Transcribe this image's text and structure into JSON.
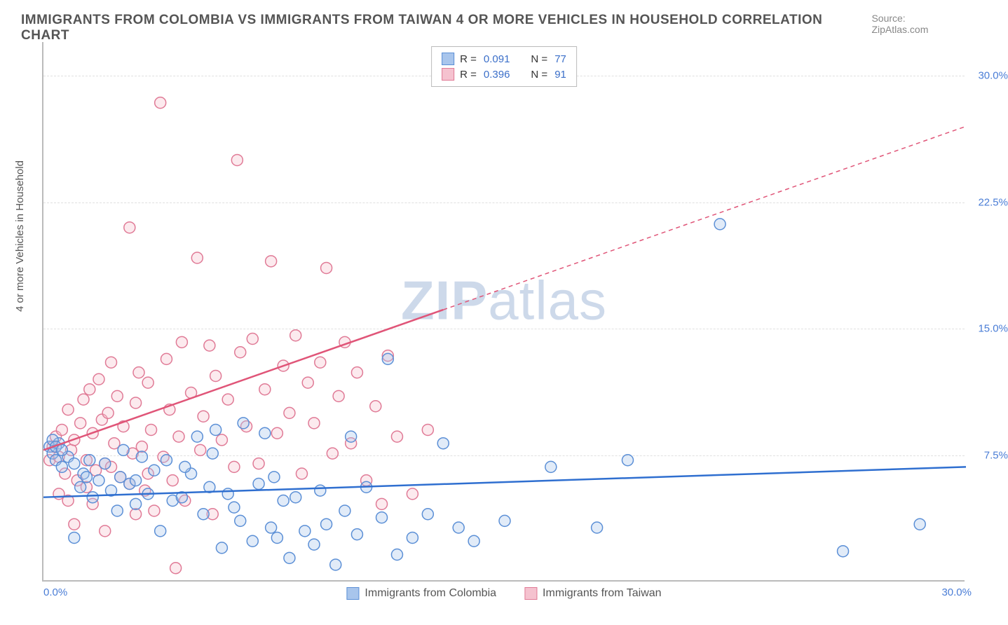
{
  "title": "IMMIGRANTS FROM COLOMBIA VS IMMIGRANTS FROM TAIWAN 4 OR MORE VEHICLES IN HOUSEHOLD CORRELATION CHART",
  "source_label": "Source: ZipAtlas.com",
  "watermark_bold": "ZIP",
  "watermark_rest": "atlas",
  "chart": {
    "type": "scatter",
    "xlim": [
      0,
      30
    ],
    "ylim": [
      0,
      32
    ],
    "x_unit": "%",
    "y_unit": "%",
    "y_axis_label": "4 or more Vehicles in Household",
    "x_ticks": [
      {
        "v": 0,
        "label": "0.0%"
      },
      {
        "v": 30,
        "label": "30.0%"
      }
    ],
    "y_ticks": [
      {
        "v": 7.5,
        "label": "7.5%"
      },
      {
        "v": 15.0,
        "label": "15.0%"
      },
      {
        "v": 22.5,
        "label": "22.5%"
      },
      {
        "v": 30.0,
        "label": "30.0%"
      }
    ],
    "grid_y": [
      7.5,
      15.0,
      22.5,
      30.0
    ],
    "grid_color": "#e0e0e0",
    "background_color": "#ffffff",
    "marker_radius": 8,
    "marker_stroke_width": 1.5,
    "marker_fill_opacity": 0.35,
    "trend_line_width": 2.5,
    "trend_dash": "6,5",
    "series": [
      {
        "id": "colombia",
        "label": "Immigrants from Colombia",
        "color_fill": "#a8c5ec",
        "color_stroke": "#5b8fd6",
        "trend_color": "#2f6fd0",
        "R": "0.091",
        "N": "77",
        "trend_from": [
          0,
          5.0
        ],
        "trend_to": [
          30,
          6.8
        ],
        "trend_solid_until_x": 30,
        "points": [
          [
            0.2,
            8.0
          ],
          [
            0.3,
            7.6
          ],
          [
            0.5,
            8.2
          ],
          [
            0.4,
            7.2
          ],
          [
            0.6,
            6.8
          ],
          [
            0.8,
            7.4
          ],
          [
            1.0,
            2.6
          ],
          [
            1.2,
            5.6
          ],
          [
            1.3,
            6.4
          ],
          [
            1.5,
            7.2
          ],
          [
            1.6,
            5.0
          ],
          [
            1.8,
            6.0
          ],
          [
            2.0,
            7.0
          ],
          [
            2.2,
            5.4
          ],
          [
            2.4,
            4.2
          ],
          [
            2.5,
            6.2
          ],
          [
            2.8,
            5.8
          ],
          [
            3.0,
            4.6
          ],
          [
            3.2,
            7.4
          ],
          [
            3.4,
            5.2
          ],
          [
            3.6,
            6.6
          ],
          [
            3.8,
            3.0
          ],
          [
            4.0,
            7.2
          ],
          [
            4.2,
            4.8
          ],
          [
            4.5,
            5.0
          ],
          [
            4.8,
            6.4
          ],
          [
            5.0,
            8.6
          ],
          [
            5.2,
            4.0
          ],
          [
            5.4,
            5.6
          ],
          [
            5.6,
            9.0
          ],
          [
            5.8,
            2.0
          ],
          [
            6.0,
            5.2
          ],
          [
            6.2,
            4.4
          ],
          [
            6.4,
            3.6
          ],
          [
            6.5,
            9.4
          ],
          [
            6.8,
            2.4
          ],
          [
            7.0,
            5.8
          ],
          [
            7.2,
            8.8
          ],
          [
            7.4,
            3.2
          ],
          [
            7.6,
            2.6
          ],
          [
            7.8,
            4.8
          ],
          [
            8.0,
            1.4
          ],
          [
            8.2,
            5.0
          ],
          [
            8.5,
            3.0
          ],
          [
            8.8,
            2.2
          ],
          [
            9.0,
            5.4
          ],
          [
            9.2,
            3.4
          ],
          [
            9.5,
            1.0
          ],
          [
            9.8,
            4.2
          ],
          [
            10.0,
            8.6
          ],
          [
            10.2,
            2.8
          ],
          [
            10.5,
            5.6
          ],
          [
            11.0,
            3.8
          ],
          [
            11.2,
            13.2
          ],
          [
            11.5,
            1.6
          ],
          [
            12.0,
            2.6
          ],
          [
            12.5,
            4.0
          ],
          [
            13.0,
            8.2
          ],
          [
            13.5,
            3.2
          ],
          [
            14.0,
            2.4
          ],
          [
            15.0,
            3.6
          ],
          [
            16.5,
            6.8
          ],
          [
            18.0,
            3.2
          ],
          [
            19.0,
            7.2
          ],
          [
            22.0,
            21.2
          ],
          [
            26.0,
            1.8
          ],
          [
            28.5,
            3.4
          ],
          [
            0.3,
            8.4
          ],
          [
            0.4,
            8.0
          ],
          [
            0.6,
            7.8
          ],
          [
            1.0,
            7.0
          ],
          [
            1.4,
            6.2
          ],
          [
            2.6,
            7.8
          ],
          [
            3.0,
            6.0
          ],
          [
            4.6,
            6.8
          ],
          [
            5.5,
            7.6
          ],
          [
            7.5,
            6.2
          ]
        ]
      },
      {
        "id": "taiwan",
        "label": "Immigrants from Taiwan",
        "color_fill": "#f5c2cf",
        "color_stroke": "#e07a96",
        "trend_color": "#e05578",
        "R": "0.396",
        "N": "91",
        "trend_from": [
          0,
          7.8
        ],
        "trend_to": [
          30,
          27.0
        ],
        "trend_solid_until_x": 13,
        "points": [
          [
            0.2,
            7.2
          ],
          [
            0.3,
            8.0
          ],
          [
            0.4,
            8.6
          ],
          [
            0.5,
            7.4
          ],
          [
            0.6,
            9.0
          ],
          [
            0.7,
            6.4
          ],
          [
            0.8,
            10.2
          ],
          [
            0.9,
            7.8
          ],
          [
            1.0,
            8.4
          ],
          [
            1.1,
            6.0
          ],
          [
            1.2,
            9.4
          ],
          [
            1.3,
            10.8
          ],
          [
            1.4,
            7.2
          ],
          [
            1.5,
            11.4
          ],
          [
            1.6,
            8.8
          ],
          [
            1.7,
            6.6
          ],
          [
            1.8,
            12.0
          ],
          [
            1.9,
            9.6
          ],
          [
            2.0,
            7.0
          ],
          [
            2.1,
            10.0
          ],
          [
            2.2,
            13.0
          ],
          [
            2.3,
            8.2
          ],
          [
            2.4,
            11.0
          ],
          [
            2.5,
            6.2
          ],
          [
            2.6,
            9.2
          ],
          [
            2.8,
            21.0
          ],
          [
            2.9,
            7.6
          ],
          [
            3.0,
            10.6
          ],
          [
            3.1,
            12.4
          ],
          [
            3.2,
            8.0
          ],
          [
            3.3,
            5.4
          ],
          [
            3.4,
            11.8
          ],
          [
            3.5,
            9.0
          ],
          [
            3.6,
            4.2
          ],
          [
            3.8,
            28.4
          ],
          [
            3.9,
            7.4
          ],
          [
            4.0,
            13.2
          ],
          [
            4.1,
            10.2
          ],
          [
            4.2,
            6.0
          ],
          [
            4.4,
            8.6
          ],
          [
            4.5,
            14.2
          ],
          [
            4.6,
            4.8
          ],
          [
            4.8,
            11.2
          ],
          [
            5.0,
            19.2
          ],
          [
            5.1,
            7.8
          ],
          [
            5.2,
            9.8
          ],
          [
            5.4,
            14.0
          ],
          [
            5.5,
            4.0
          ],
          [
            5.6,
            12.2
          ],
          [
            5.8,
            8.4
          ],
          [
            6.0,
            10.8
          ],
          [
            6.2,
            6.8
          ],
          [
            6.3,
            25.0
          ],
          [
            6.4,
            13.6
          ],
          [
            6.6,
            9.2
          ],
          [
            6.8,
            14.4
          ],
          [
            7.0,
            7.0
          ],
          [
            7.2,
            11.4
          ],
          [
            7.4,
            19.0
          ],
          [
            7.6,
            8.8
          ],
          [
            7.8,
            12.8
          ],
          [
            8.0,
            10.0
          ],
          [
            8.2,
            14.6
          ],
          [
            8.4,
            6.4
          ],
          [
            8.6,
            11.8
          ],
          [
            8.8,
            9.4
          ],
          [
            9.0,
            13.0
          ],
          [
            9.2,
            18.6
          ],
          [
            9.4,
            7.6
          ],
          [
            9.6,
            11.0
          ],
          [
            9.8,
            14.2
          ],
          [
            10.0,
            8.2
          ],
          [
            10.2,
            12.4
          ],
          [
            10.5,
            6.0
          ],
          [
            10.8,
            10.4
          ],
          [
            11.0,
            4.6
          ],
          [
            11.2,
            13.4
          ],
          [
            11.5,
            8.6
          ],
          [
            12.0,
            5.2
          ],
          [
            12.5,
            9.0
          ],
          [
            4.3,
            0.8
          ],
          [
            1.0,
            3.4
          ],
          [
            2.0,
            3.0
          ],
          [
            0.5,
            5.2
          ],
          [
            1.6,
            4.6
          ],
          [
            2.8,
            5.8
          ],
          [
            3.4,
            6.4
          ],
          [
            0.8,
            4.8
          ],
          [
            1.4,
            5.6
          ],
          [
            2.2,
            6.8
          ],
          [
            3.0,
            4.0
          ]
        ]
      }
    ],
    "legend_top": {
      "r_label": "R =",
      "n_label": "N ="
    },
    "legend_bottom_labels": {
      "colombia": "Immigrants from Colombia",
      "taiwan": "Immigrants from Taiwan"
    }
  }
}
